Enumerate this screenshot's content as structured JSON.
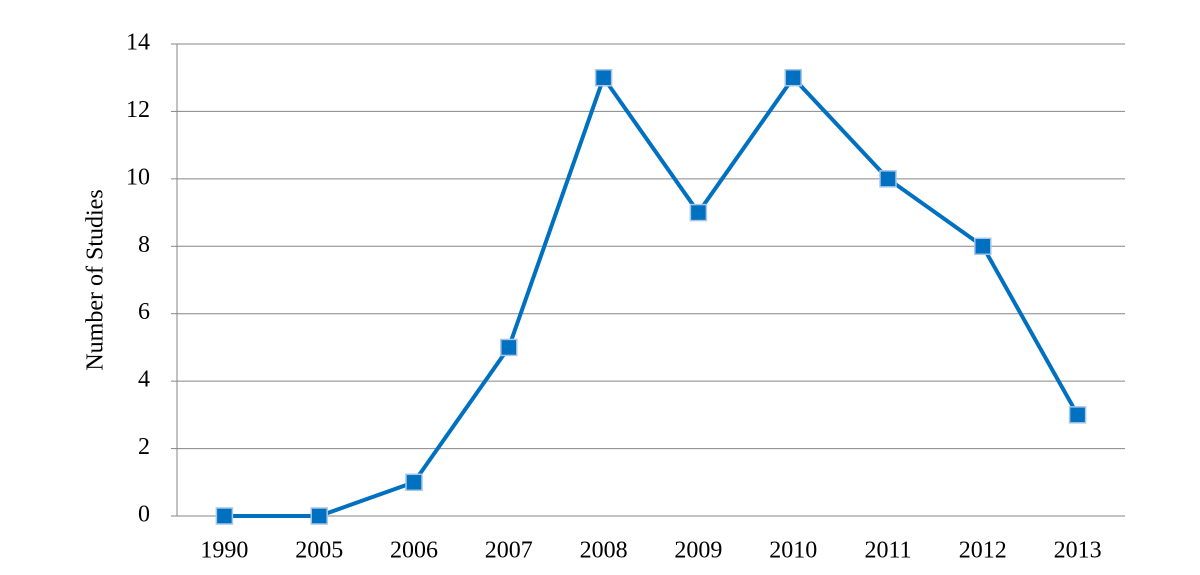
{
  "chart_data": {
    "type": "line",
    "y_label": "Number of Studies",
    "categories": [
      "1990",
      "2005",
      "2006",
      "2007",
      "2008",
      "2009",
      "2010",
      "2011",
      "2012",
      "2013"
    ],
    "values": [
      0,
      0,
      1,
      5,
      13,
      9,
      13,
      10,
      8,
      3
    ],
    "color": "#0070c0",
    "ylim": [
      0,
      14
    ],
    "yticks": [
      0,
      2,
      4,
      6,
      8,
      10,
      12,
      14
    ],
    "grid": true
  }
}
